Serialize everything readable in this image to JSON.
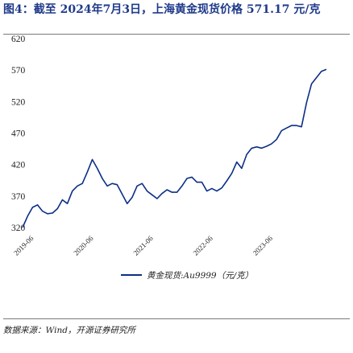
{
  "title": "图4：截至 2024年7月3日，上海黄金现货价格 571.17 元/克",
  "source": "数据来源：Wind，开源证券研究所",
  "chart_data": {
    "type": "line",
    "title": "图4：截至 2024年7月3日，上海黄金现货价格 571.17 元/克",
    "xlabel": "",
    "ylabel": "",
    "ylim": [
      320,
      620
    ],
    "yticks": [
      320,
      370,
      420,
      470,
      520,
      570,
      620
    ],
    "xticks": [
      "2019-06",
      "2020-06",
      "2021-06",
      "2022-06",
      "2023-06"
    ],
    "grid": false,
    "legend_position": "bottom",
    "series": [
      {
        "name": "黄金现货:Au9999（元/克）",
        "color": "#0b2f86",
        "x": [
          "2019-06",
          "2019-07",
          "2019-08",
          "2019-09",
          "2019-10",
          "2019-11",
          "2019-12",
          "2020-01",
          "2020-02",
          "2020-03",
          "2020-04",
          "2020-05",
          "2020-06",
          "2020-07",
          "2020-08",
          "2020-09",
          "2020-10",
          "2020-11",
          "2020-12",
          "2021-01",
          "2021-02",
          "2021-03",
          "2021-04",
          "2021-05",
          "2021-06",
          "2021-07",
          "2021-08",
          "2021-09",
          "2021-10",
          "2021-11",
          "2021-12",
          "2022-01",
          "2022-02",
          "2022-03",
          "2022-04",
          "2022-05",
          "2022-06",
          "2022-07",
          "2022-08",
          "2022-09",
          "2022-10",
          "2022-11",
          "2022-12",
          "2023-01",
          "2023-02",
          "2023-03",
          "2023-04",
          "2023-05",
          "2023-06",
          "2023-07",
          "2023-08",
          "2023-09",
          "2023-10",
          "2023-11",
          "2023-12",
          "2024-01",
          "2024-02",
          "2024-03",
          "2024-04",
          "2024-05",
          "2024-06",
          "2024-07"
        ],
        "values": [
          320,
          338,
          352,
          356,
          346,
          342,
          343,
          350,
          364,
          358,
          378,
          386,
          390,
          408,
          428,
          414,
          398,
          386,
          390,
          388,
          373,
          358,
          368,
          386,
          390,
          378,
          372,
          366,
          374,
          380,
          376,
          376,
          386,
          398,
          400,
          392,
          392,
          378,
          382,
          378,
          383,
          394,
          406,
          424,
          414,
          436,
          446,
          448,
          446,
          449,
          453,
          460,
          474,
          478,
          482,
          482,
          480,
          518,
          548,
          558,
          568,
          571.17
        ]
      }
    ]
  }
}
